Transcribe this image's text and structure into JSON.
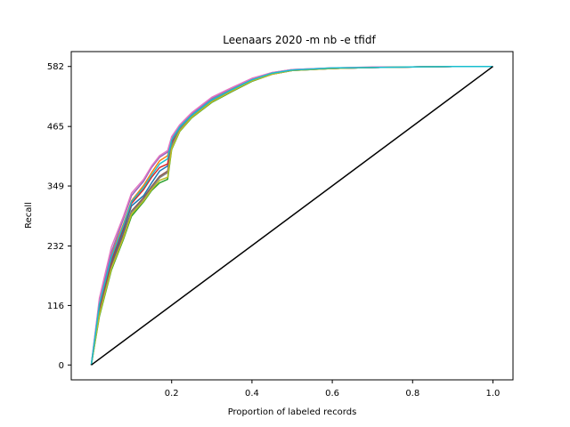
{
  "chart_data": {
    "type": "line",
    "title": "Leenaars 2020 -m nb -e tfidf",
    "xlabel": "Proportion of labeled records",
    "ylabel": "Recall",
    "xlim": [
      -0.05,
      1.05
    ],
    "ylim": [
      -29,
      611
    ],
    "x_ticks": [
      0.2,
      0.4,
      0.6,
      0.8,
      1.0
    ],
    "x_tick_labels": [
      "0.2",
      "0.4",
      "0.6",
      "0.8",
      "1.0"
    ],
    "y_ticks": [
      0,
      116,
      232,
      349,
      465,
      582
    ],
    "y_tick_labels": [
      "0",
      "116",
      "232",
      "349",
      "465",
      "582"
    ],
    "grid": false,
    "series": [
      {
        "color": "#1f77b4",
        "x": [
          0,
          0.02,
          0.05,
          0.08,
          0.1,
          0.13,
          0.15,
          0.17,
          0.19,
          0.2,
          0.22,
          0.25,
          0.3,
          0.35,
          0.4,
          0.45,
          0.5,
          0.6,
          0.7,
          0.8,
          0.9,
          1.0
        ],
        "y": [
          0,
          110,
          200,
          262,
          310,
          330,
          355,
          378,
          388,
          430,
          460,
          485,
          515,
          535,
          555,
          568,
          575,
          578,
          580,
          581,
          582,
          582
        ]
      },
      {
        "color": "#ff7f0e",
        "x": [
          0,
          0.02,
          0.05,
          0.08,
          0.1,
          0.13,
          0.15,
          0.17,
          0.19,
          0.2,
          0.22,
          0.25,
          0.3,
          0.35,
          0.4,
          0.45,
          0.5,
          0.6,
          0.7,
          0.8,
          0.9,
          1.0
        ],
        "y": [
          0,
          120,
          215,
          275,
          320,
          350,
          375,
          398,
          408,
          440,
          465,
          488,
          518,
          538,
          557,
          569,
          575,
          579,
          580,
          581,
          582,
          582
        ]
      },
      {
        "color": "#2ca02c",
        "x": [
          0,
          0.02,
          0.05,
          0.08,
          0.1,
          0.13,
          0.15,
          0.17,
          0.19,
          0.2,
          0.22,
          0.25,
          0.3,
          0.35,
          0.4,
          0.45,
          0.5,
          0.6,
          0.7,
          0.8,
          0.9,
          1.0
        ],
        "y": [
          0,
          95,
          185,
          245,
          290,
          318,
          340,
          355,
          362,
          420,
          455,
          482,
          512,
          533,
          553,
          567,
          574,
          578,
          580,
          581,
          582,
          582
        ]
      },
      {
        "color": "#d62728",
        "x": [
          0,
          0.02,
          0.05,
          0.08,
          0.1,
          0.13,
          0.15,
          0.17,
          0.19,
          0.2,
          0.22,
          0.25,
          0.3,
          0.35,
          0.4,
          0.45,
          0.5,
          0.6,
          0.7,
          0.8,
          0.9,
          1.0
        ],
        "y": [
          0,
          115,
          205,
          268,
          315,
          342,
          366,
          385,
          392,
          435,
          462,
          486,
          516,
          536,
          556,
          568,
          575,
          578,
          580,
          581,
          582,
          582
        ]
      },
      {
        "color": "#9467bd",
        "x": [
          0,
          0.02,
          0.05,
          0.08,
          0.1,
          0.13,
          0.15,
          0.17,
          0.19,
          0.2,
          0.22,
          0.25,
          0.3,
          0.35,
          0.4,
          0.45,
          0.5,
          0.6,
          0.7,
          0.8,
          0.9,
          1.0
        ],
        "y": [
          0,
          125,
          220,
          285,
          330,
          358,
          385,
          405,
          415,
          442,
          467,
          490,
          520,
          540,
          558,
          570,
          576,
          579,
          580,
          581,
          582,
          582
        ]
      },
      {
        "color": "#8c564b",
        "x": [
          0,
          0.02,
          0.05,
          0.08,
          0.1,
          0.13,
          0.15,
          0.17,
          0.19,
          0.2,
          0.22,
          0.25,
          0.3,
          0.35,
          0.4,
          0.45,
          0.5,
          0.6,
          0.7,
          0.8,
          0.9,
          1.0
        ],
        "y": [
          0,
          105,
          195,
          255,
          300,
          326,
          348,
          368,
          378,
          425,
          458,
          484,
          514,
          534,
          554,
          567,
          574,
          578,
          580,
          581,
          582,
          582
        ]
      },
      {
        "color": "#e377c2",
        "x": [
          0,
          0.02,
          0.05,
          0.08,
          0.1,
          0.13,
          0.15,
          0.17,
          0.19,
          0.2,
          0.22,
          0.25,
          0.3,
          0.35,
          0.4,
          0.45,
          0.5,
          0.6,
          0.7,
          0.8,
          0.9,
          1.0
        ],
        "y": [
          0,
          130,
          230,
          290,
          335,
          362,
          388,
          408,
          418,
          445,
          468,
          492,
          522,
          541,
          559,
          570,
          576,
          579,
          581,
          581,
          582,
          582
        ]
      },
      {
        "color": "#7f7f7f",
        "x": [
          0,
          0.02,
          0.05,
          0.08,
          0.1,
          0.13,
          0.15,
          0.17,
          0.19,
          0.2,
          0.22,
          0.25,
          0.3,
          0.35,
          0.4,
          0.45,
          0.5,
          0.6,
          0.7,
          0.8,
          0.9,
          1.0
        ],
        "y": [
          0,
          100,
          190,
          250,
          298,
          322,
          345,
          365,
          375,
          428,
          460,
          485,
          515,
          535,
          555,
          568,
          575,
          578,
          580,
          581,
          582,
          582
        ]
      },
      {
        "color": "#bcbd22",
        "x": [
          0,
          0.02,
          0.05,
          0.08,
          0.1,
          0.13,
          0.15,
          0.17,
          0.19,
          0.2,
          0.22,
          0.25,
          0.3,
          0.35,
          0.4,
          0.45,
          0.5,
          0.6,
          0.7,
          0.8,
          0.9,
          1.0
        ],
        "y": [
          0,
          98,
          188,
          248,
          294,
          320,
          342,
          360,
          366,
          422,
          456,
          483,
          513,
          534,
          554,
          567,
          574,
          578,
          580,
          581,
          582,
          582
        ]
      },
      {
        "color": "#17becf",
        "x": [
          0,
          0.02,
          0.05,
          0.08,
          0.1,
          0.13,
          0.15,
          0.17,
          0.19,
          0.2,
          0.22,
          0.25,
          0.3,
          0.35,
          0.4,
          0.45,
          0.5,
          0.6,
          0.7,
          0.8,
          0.9,
          1.0
        ],
        "y": [
          0,
          118,
          210,
          272,
          318,
          346,
          370,
          392,
          402,
          438,
          464,
          487,
          517,
          537,
          556,
          569,
          575,
          579,
          580,
          581,
          582,
          582
        ]
      },
      {
        "color": "#000000",
        "x": [
          0,
          1.0
        ],
        "y": [
          0,
          582
        ]
      }
    ]
  }
}
